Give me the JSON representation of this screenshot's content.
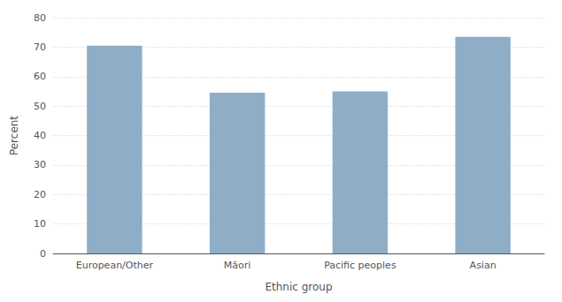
{
  "chart_data": {
    "type": "bar",
    "categories": [
      "European/Other",
      "Māori",
      "Pacific peoples",
      "Asian"
    ],
    "values": [
      70.5,
      54.5,
      55.0,
      73.5
    ],
    "color": "#8eadc7",
    "xlabel": "Ethnic group",
    "ylabel": "Percent",
    "ylim": [
      0,
      80
    ],
    "yticks": [
      0,
      10,
      20,
      30,
      40,
      50,
      60,
      70,
      80
    ],
    "grid": true
  }
}
